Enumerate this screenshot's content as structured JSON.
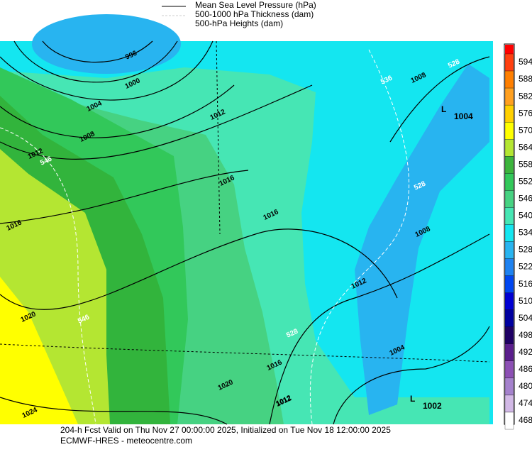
{
  "legend": {
    "items": [
      "Mean Sea Level Pressure (hPa)",
      "500-1000 hPa Thickness (dam)",
      "500-hPa Heights (dam)"
    ]
  },
  "colorbar": {
    "levels": [
      "594",
      "588",
      "582",
      "576",
      "570",
      "564",
      "558",
      "552",
      "546",
      "540",
      "534",
      "528",
      "522",
      "516",
      "510",
      "504",
      "498",
      "492",
      "486",
      "480",
      "474",
      "468"
    ],
    "colors": [
      "#ff4010",
      "#ff7f00",
      "#ffa020",
      "#ffd000",
      "#ffff00",
      "#b4e632",
      "#3cb43c",
      "#32c85a",
      "#46d282",
      "#46e6b4",
      "#14e6f0",
      "#28b4f0",
      "#1e82f0",
      "#0046f0",
      "#0000d2",
      "#0000a0",
      "#1e0064",
      "#5a1e8c",
      "#8c50b4",
      "#a582cd",
      "#d2b9e6",
      "#ffffff"
    ],
    "top_color": "#ff0000"
  },
  "map_labels": [
    "996",
    "1000",
    "1004",
    "1008",
    "1012",
    "1016",
    "1020",
    "1024",
    "1008",
    "1012",
    "1016",
    "1016",
    "1012",
    "1008",
    "1012",
    "1020",
    "1016",
    "1012",
    "1004",
    "546",
    "546",
    "536",
    "528",
    "528",
    "528"
  ],
  "lows": [
    {
      "letter": "L",
      "value": "1004"
    },
    {
      "letter": "L",
      "value": "1002"
    }
  ],
  "footer": {
    "line1": "204-h Fcst Valid on Thu Nov 27 00:00:00 2025, Initialized on Tue Nov 18 12:00:00 2025",
    "line2": "ECMWF-HRES  - meteocentre.com"
  }
}
